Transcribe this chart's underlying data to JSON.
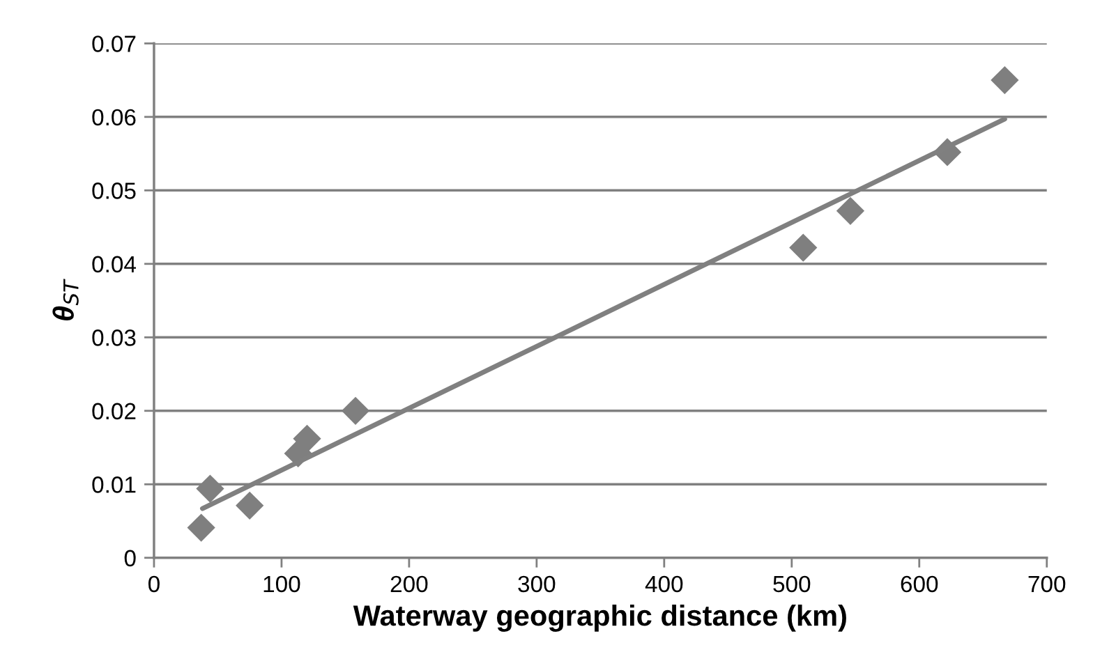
{
  "chart_data": {
    "type": "scatter",
    "xlabel": "Waterway geographic distance (km)",
    "ylabel": "θ$_{ST}$",
    "xlim": [
      0,
      700
    ],
    "xticks": [
      0,
      100,
      200,
      300,
      400,
      500,
      600,
      700
    ],
    "ylim": [
      0,
      0.07
    ],
    "yticks": [
      0,
      0.01,
      0.02,
      0.03,
      0.04,
      0.05,
      0.06,
      0.07
    ],
    "grid": "y",
    "series": [
      {
        "marker": "diamond",
        "color": "#7f7f7f",
        "x": [
          37,
          44,
          75,
          113,
          120,
          158,
          509,
          546,
          622,
          667
        ],
        "values": [
          0.0041,
          0.0094,
          0.0071,
          0.0142,
          0.0162,
          0.02,
          0.0422,
          0.0472,
          0.0552,
          0.065
        ]
      },
      {
        "type": "line",
        "color": "#808080",
        "x": [
          38,
          667
        ],
        "values": [
          0.0067,
          0.0597
        ],
        "line_style": "solid"
      }
    ]
  }
}
